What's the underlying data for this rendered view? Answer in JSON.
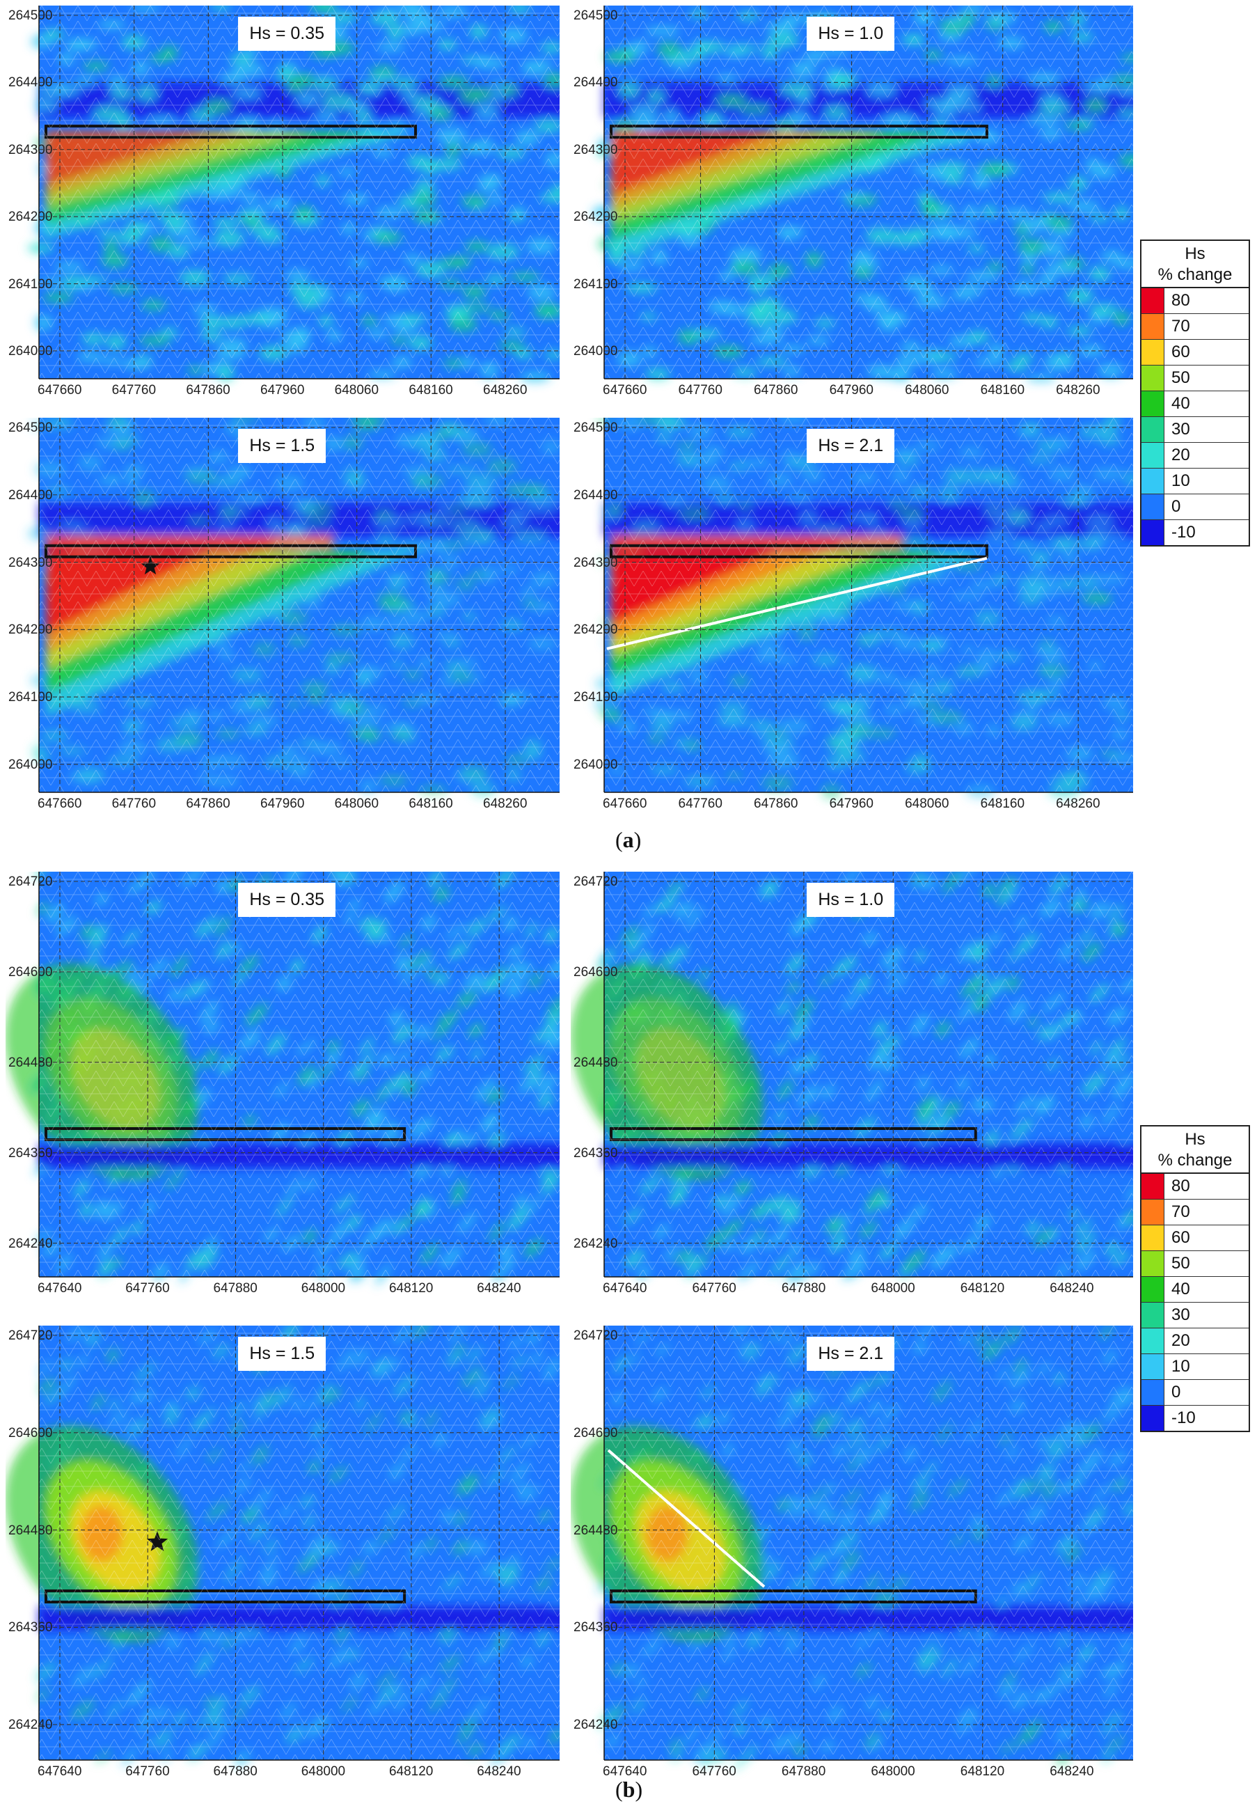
{
  "figure_a": {
    "caption_letter": "a",
    "x_ticks": [
      "647660",
      "647760",
      "647860",
      "647960",
      "648060",
      "648160",
      "648260"
    ],
    "y_ticks": [
      "264500",
      "264400",
      "264300",
      "264200",
      "264100",
      "264000"
    ],
    "panels": [
      {
        "label": "Hs = 0.35",
        "star": false,
        "white_line": false
      },
      {
        "label": "Hs = 1.0",
        "star": false,
        "white_line": false
      },
      {
        "label": "Hs = 1.5",
        "star": true,
        "white_line": false
      },
      {
        "label": "Hs = 2.1",
        "star": false,
        "white_line": true
      }
    ]
  },
  "figure_b": {
    "caption_letter": "b",
    "x_ticks": [
      "647640",
      "647760",
      "647880",
      "648000",
      "648120",
      "648240"
    ],
    "y_ticks": [
      "264720",
      "264600",
      "264480",
      "264360",
      "264240"
    ],
    "panels": [
      {
        "label": "Hs = 0.35",
        "star": false,
        "white_line": false
      },
      {
        "label": "Hs = 1.0",
        "star": false,
        "white_line": false
      },
      {
        "label": "Hs = 1.5",
        "star": true,
        "white_line": false
      },
      {
        "label": "Hs = 2.1",
        "star": false,
        "white_line": true
      }
    ]
  },
  "legend": {
    "title_line1": "Hs",
    "title_line2": "% change",
    "entries": [
      {
        "value": "80",
        "color": "#e8001e"
      },
      {
        "value": "70",
        "color": "#ff7a1a"
      },
      {
        "value": "60",
        "color": "#ffd21e"
      },
      {
        "value": "50",
        "color": "#8fe01c"
      },
      {
        "value": "40",
        "color": "#1ec81e"
      },
      {
        "value": "30",
        "color": "#1ed28c"
      },
      {
        "value": "20",
        "color": "#2ee0d2"
      },
      {
        "value": "10",
        "color": "#34c8f5"
      },
      {
        "value": "0",
        "color": "#1e78ff"
      },
      {
        "value": "-10",
        "color": "#1414e6"
      }
    ]
  }
}
